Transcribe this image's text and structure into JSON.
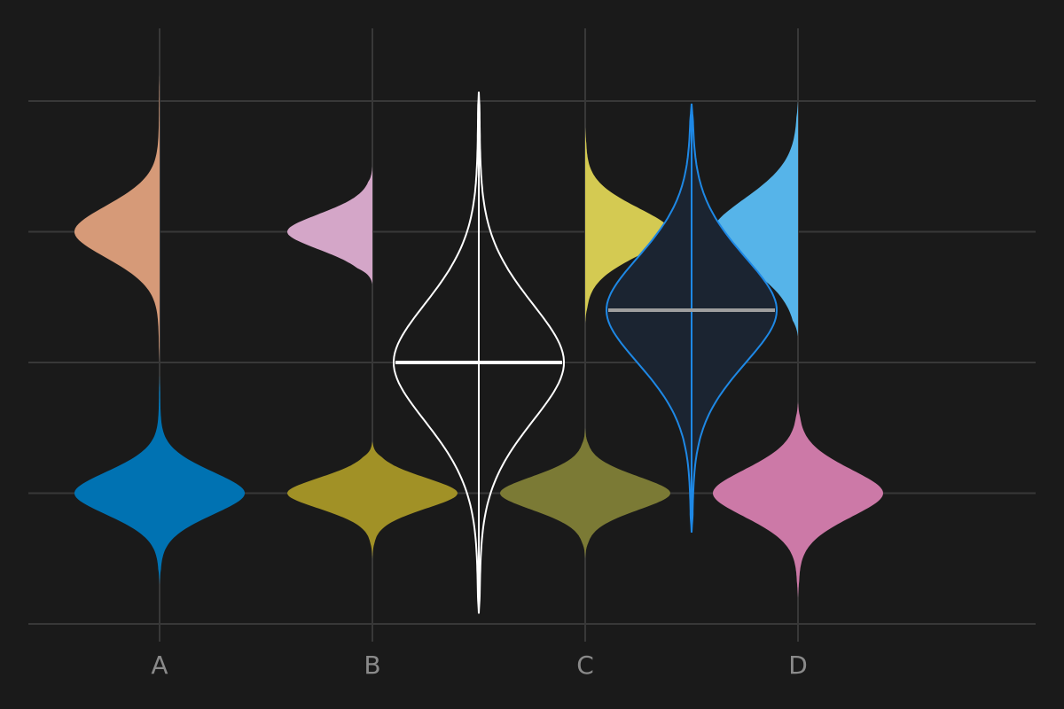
{
  "colors": {
    "background": "#1a1a1a",
    "grid": "#383838",
    "tick_text": "#8a8a8a"
  },
  "chart_data": {
    "type": "violin",
    "title": "",
    "xlabel": "",
    "ylabel": "",
    "categories": [
      "A",
      "B",
      "C",
      "D"
    ],
    "ylim": [
      0,
      4
    ],
    "y_gridlines": [
      0,
      1,
      2,
      3,
      4
    ],
    "y_tick_labels_shown": false,
    "x_grid": true,
    "legend": "none",
    "half_violins": [
      {
        "category": "A",
        "side": "left",
        "center": 3.0,
        "spread": 0.22,
        "y_range": [
          2.0,
          4.2
        ],
        "width": 0.4,
        "color": "#d69a78"
      },
      {
        "category": "A",
        "side": "both",
        "center": 1.0,
        "spread": 0.18,
        "y_range": [
          0.3,
          1.9
        ],
        "width": 0.4,
        "color": "#0072b2"
      },
      {
        "category": "B",
        "side": "left",
        "center": 3.0,
        "spread": 0.15,
        "y_range": [
          2.6,
          3.5
        ],
        "width": 0.4,
        "color": "#d4a6c8"
      },
      {
        "category": "B",
        "side": "both",
        "center": 1.0,
        "spread": 0.13,
        "y_range": [
          0.5,
          1.4
        ],
        "width": 0.4,
        "color": "#a19126"
      },
      {
        "category": "C",
        "side": "right",
        "center": 3.0,
        "spread": 0.2,
        "y_range": [
          2.3,
          3.8
        ],
        "width": 0.4,
        "color": "#d4ca52"
      },
      {
        "category": "C",
        "side": "both",
        "center": 1.0,
        "spread": 0.14,
        "y_range": [
          0.5,
          1.5
        ],
        "width": 0.4,
        "color": "#7b7a35"
      },
      {
        "category": "D",
        "side": "left",
        "center": 3.0,
        "spread": 0.28,
        "y_range": [
          2.2,
          4.0
        ],
        "width": 0.4,
        "color": "#56b4e9"
      },
      {
        "category": "D",
        "side": "both",
        "center": 1.0,
        "spread": 0.2,
        "y_range": [
          0.2,
          1.7
        ],
        "width": 0.4,
        "color": "#cc79a7"
      }
    ],
    "outline_violins": [
      {
        "position": 2.5,
        "center": 2.0,
        "spread": 0.5,
        "y_range": [
          0.08,
          4.07
        ],
        "width": 0.4,
        "median": 2.0,
        "stroke": "#ffffff",
        "fill": "none",
        "median_color": "#ffffff"
      },
      {
        "position": 3.5,
        "center": 2.4,
        "spread": 0.45,
        "y_range": [
          0.7,
          3.98
        ],
        "width": 0.4,
        "median": 2.4,
        "stroke": "#1e88e5",
        "fill": "#1b2431",
        "median_color": "#9e9e9e"
      }
    ]
  }
}
